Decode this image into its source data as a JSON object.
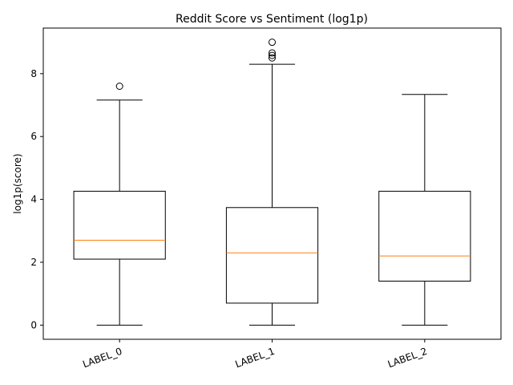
{
  "chart_data": {
    "type": "box",
    "title": "Reddit Score vs Sentiment (log1p)",
    "xlabel": "",
    "ylabel": "log1p(score)",
    "ylim": [
      -0.45,
      9.45
    ],
    "yticks": [
      0,
      2,
      4,
      6,
      8
    ],
    "grid": false,
    "categories": [
      "LABEL_0",
      "LABEL_1",
      "LABEL_2"
    ],
    "boxes": [
      {
        "min": 0,
        "q1": 2.1,
        "median": 2.7,
        "q3": 4.26,
        "max": 7.16,
        "outliers": [
          7.6
        ]
      },
      {
        "min": 0,
        "q1": 0.7,
        "median": 2.3,
        "q3": 3.74,
        "max": 8.3,
        "outliers": [
          8.5,
          8.58,
          8.66,
          9.0
        ]
      },
      {
        "min": 0,
        "q1": 1.4,
        "median": 2.2,
        "q3": 4.26,
        "max": 7.34,
        "outliers": []
      }
    ],
    "colors": {
      "box": "#000000",
      "median": "#ff7f0e",
      "flier": "#000000"
    }
  }
}
